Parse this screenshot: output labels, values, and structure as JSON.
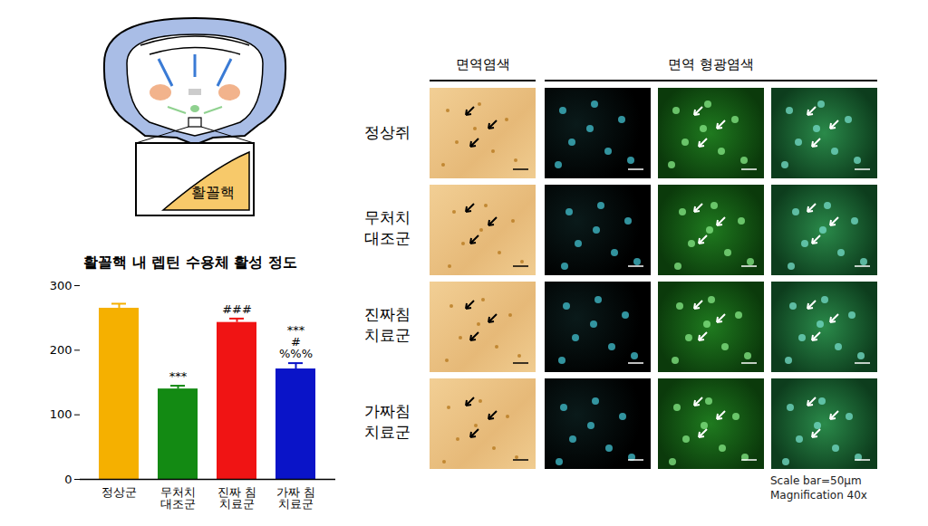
{
  "chart_data": {
    "type": "bar",
    "title": "활꼴핵 내 렙틴 수용체 활성 정도",
    "categories": [
      "정상군",
      "무처치\n대조군",
      "진짜 침\n치료군",
      "가짜 침\n치료군"
    ],
    "values": [
      265,
      140,
      243,
      171
    ],
    "errors": [
      7,
      5,
      6,
      9
    ],
    "colors": [
      "#f5b000",
      "#138a13",
      "#f01414",
      "#0a14c8"
    ],
    "ylim": [
      0,
      300
    ],
    "yticks": [
      0,
      100,
      200,
      300
    ],
    "grid": false,
    "annotations": [
      {
        "category": "무처치\n대조군",
        "text": "***"
      },
      {
        "category": "진짜 침\n치료군",
        "text": "###"
      },
      {
        "category": "가짜 침\n치료군",
        "text": "***\n#\n%%%"
      }
    ]
  },
  "diagram": {
    "region_label": "활꼴핵"
  },
  "panels": {
    "column_headers": [
      "면역염색",
      "면역 형광염색"
    ],
    "row_labels": [
      "정상쥐",
      "무처치\n대조군",
      "진짜침\n치료군",
      "가짜침\n치료군"
    ],
    "footnote": [
      "Scale bar=50μm",
      "Magnification 40x"
    ]
  }
}
